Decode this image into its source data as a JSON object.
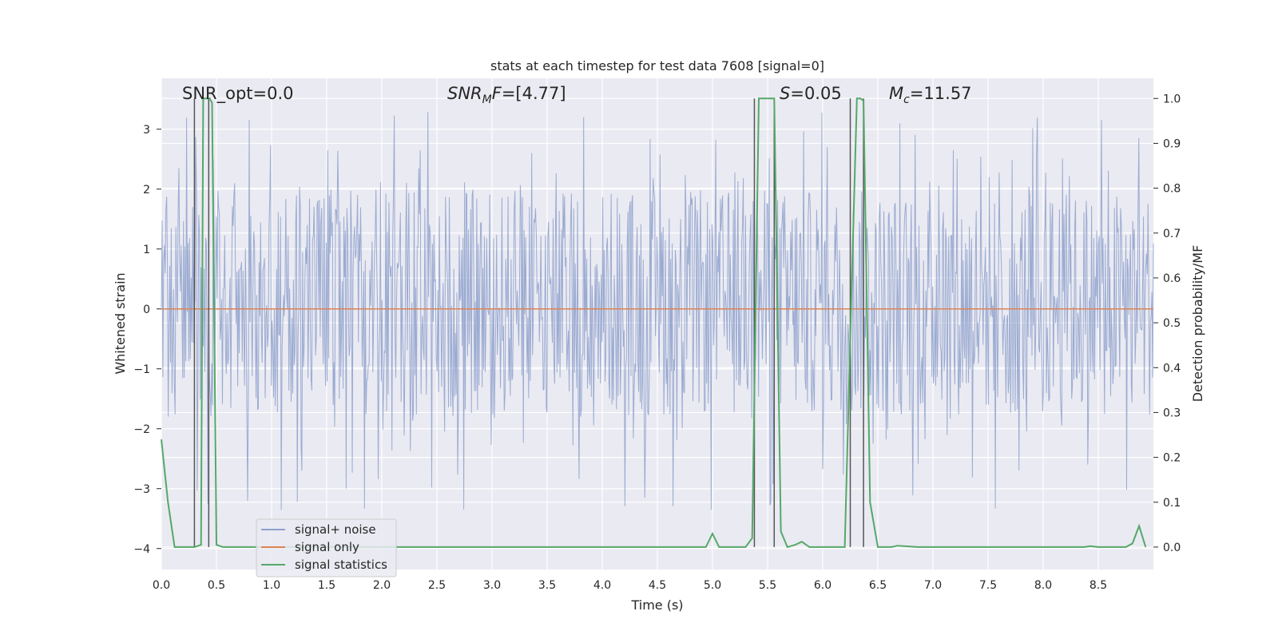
{
  "chart_data": {
    "type": "line",
    "title": "stats at each timestep for test data 7608 [signal=0]",
    "xlabel": "Time (s)",
    "ylabel_left": "Whitened strain",
    "ylabel_right": "Detection probability/MF",
    "xlim": [
      0.0,
      9.0
    ],
    "ylim_left": [
      -4.35,
      3.85
    ],
    "ylim_right": [
      -0.05,
      1.045
    ],
    "grid": true,
    "x_ticks": [
      0.0,
      0.5,
      1.0,
      1.5,
      2.0,
      2.5,
      3.0,
      3.5,
      4.0,
      4.5,
      5.0,
      5.5,
      6.0,
      6.5,
      7.0,
      7.5,
      8.0,
      8.5
    ],
    "x_tick_labels": [
      "0.0",
      "0.5",
      "1.0",
      "1.5",
      "2.0",
      "2.5",
      "3.0",
      "3.5",
      "4.0",
      "4.5",
      "5.0",
      "5.5",
      "6.0",
      "6.5",
      "7.0",
      "7.5",
      "8.0",
      "8.5"
    ],
    "y_ticks_left": [
      3,
      2,
      1,
      0,
      -1,
      -2,
      -3,
      -4
    ],
    "y_tick_labels_left": [
      "3",
      "2",
      "1",
      "0",
      "−1",
      "−2",
      "−3",
      "−4"
    ],
    "y_ticks_right": [
      1.0,
      0.9,
      0.8,
      0.7,
      0.6,
      0.5,
      0.4,
      0.3,
      0.2,
      0.1,
      0.0
    ],
    "y_tick_labels_right": [
      "1.0",
      "0.9",
      "0.8",
      "0.7",
      "0.6",
      "0.5",
      "0.4",
      "0.3",
      "0.2",
      "0.1",
      "0.0"
    ],
    "series": [
      {
        "name": "signal+ noise",
        "color": "#8da0cb",
        "axis": "left",
        "description_values": "noise band approx -1.8 to 2.0 with spikes reaching about 3.3 and -4.0",
        "envelope_upper": 2.0,
        "envelope_lower": -1.8
      },
      {
        "name": "signal only",
        "color": "#dd8452",
        "axis": "left",
        "x": [
          0.0,
          9.0
        ],
        "y": [
          0.0,
          0.0
        ]
      },
      {
        "name": "signal statistics",
        "color": "#55a868",
        "axis": "right",
        "x": [
          0.0,
          0.06,
          0.12,
          0.25,
          0.3,
          0.36,
          0.38,
          0.44,
          0.46,
          0.5,
          0.56,
          0.62,
          4.94,
          5.0,
          5.06,
          5.12,
          5.3,
          5.36,
          5.42,
          5.56,
          5.62,
          5.68,
          5.75,
          5.81,
          5.88,
          6.0,
          6.2,
          6.26,
          6.31,
          6.34,
          6.37,
          6.43,
          6.5,
          6.62,
          6.68,
          6.87,
          7.5,
          8.37,
          8.43,
          8.5,
          8.75,
          8.81,
          8.87,
          8.93
        ],
        "y": [
          0.24,
          0.1,
          0.0,
          0.0,
          0.0,
          0.005,
          1.0,
          1.0,
          0.99,
          0.005,
          0.0,
          0.0,
          0.0,
          0.03,
          0.0,
          0.0,
          0.0,
          0.02,
          1.0,
          1.0,
          0.035,
          0.0,
          0.005,
          0.012,
          0.0,
          0.0,
          0.0,
          0.56,
          1.0,
          1.0,
          0.995,
          0.1,
          0.0,
          0.0,
          0.003,
          0.0,
          0.0,
          0.0,
          0.002,
          0.0,
          0.0,
          0.008,
          0.047,
          0.0
        ]
      }
    ],
    "vertical_lines": [
      0.3,
      0.43,
      5.38,
      5.56,
      6.25,
      6.37
    ],
    "vertical_line_color": "#555555",
    "annotations": [
      {
        "name": "snr-opt",
        "text": "SNR_opt=0.0"
      },
      {
        "name": "snr-mf",
        "text_main": "SNR",
        "text_sub": "M",
        "text_italic": "F",
        "text_value": "=[4.77]"
      },
      {
        "name": "s-value",
        "text_italic": "S",
        "text_value": "=0.05"
      },
      {
        "name": "mc-value",
        "text_italic": "M",
        "text_sub": "c",
        "text_value": "=11.57"
      }
    ],
    "legend": {
      "placement": "lower-left",
      "entries": [
        "signal+ noise",
        "signal only",
        "signal statistics"
      ]
    }
  }
}
